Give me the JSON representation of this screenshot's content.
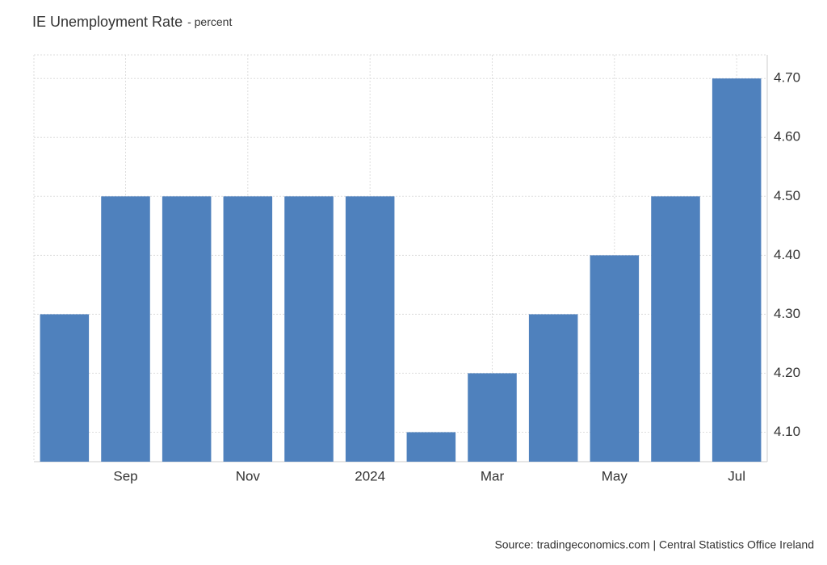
{
  "chart_data": {
    "type": "bar",
    "title": "IE Unemployment Rate",
    "subtitle": "- percent",
    "categories": [
      null,
      "Sep",
      null,
      "Nov",
      null,
      "2024",
      null,
      "Mar",
      null,
      "May",
      null,
      "Jul"
    ],
    "values": [
      4.3,
      4.5,
      4.5,
      4.5,
      4.5,
      4.5,
      4.1,
      4.2,
      4.3,
      4.4,
      4.5,
      4.7
    ],
    "color": "#4f81bd",
    "ylim": [
      4.05,
      4.74
    ],
    "yticks": [
      {
        "value": 4.1,
        "label": "4.10"
      },
      {
        "value": 4.2,
        "label": "4.20"
      },
      {
        "value": 4.3,
        "label": "4.30"
      },
      {
        "value": 4.4,
        "label": "4.40"
      },
      {
        "value": 4.5,
        "label": "4.50"
      },
      {
        "value": 4.6,
        "label": "4.60"
      },
      {
        "value": 4.7,
        "label": "4.70"
      }
    ],
    "grid": true,
    "source": "Source: tradingeconomics.com | Central Statistics Office Ireland"
  }
}
